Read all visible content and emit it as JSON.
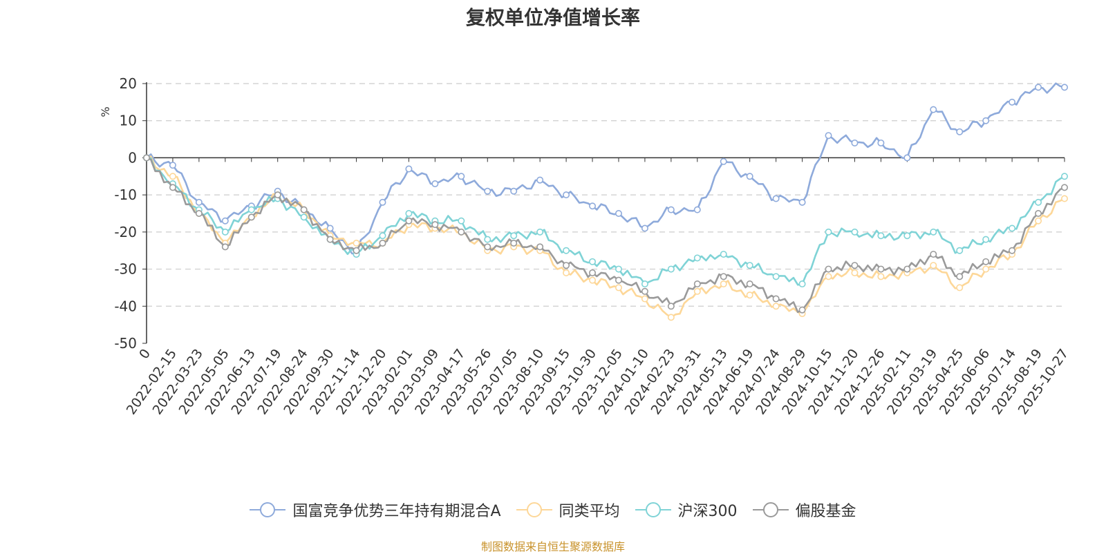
{
  "colors": {
    "series_a": "#8eaadb",
    "peer_avg": "#fdd798",
    "csi300": "#7fd3d6",
    "equity_funds": "#9a9a9a",
    "source": "#c8922b",
    "unit": "#e02020"
  },
  "source_note": "制图数据来自恒生聚源数据库",
  "chart_data": {
    "type": "line",
    "title": "复权单位净值增长率",
    "ylabel": "%",
    "xlabel": "",
    "ylim": [
      -50,
      20
    ],
    "yticks": [
      20,
      10,
      0,
      -10,
      -20,
      -30,
      -40,
      -50
    ],
    "grid": true,
    "legend_position": "bottom-center",
    "categories": [
      "0",
      "2022-02-15",
      "2022-03-23",
      "2022-05-05",
      "2022-06-13",
      "2022-07-19",
      "2022-08-24",
      "2022-09-30",
      "2022-11-14",
      "2022-12-20",
      "2023-02-01",
      "2023-03-09",
      "2023-04-17",
      "2023-05-26",
      "2023-07-05",
      "2023-08-10",
      "2023-09-15",
      "2023-10-30",
      "2023-12-05",
      "2024-01-10",
      "2024-02-23",
      "2024-03-31",
      "2024-05-13",
      "2024-06-19",
      "2024-07-24",
      "2024-08-29",
      "2024-10-15",
      "2024-11-20",
      "2024-12-26",
      "2025-02-11",
      "2025-03-19",
      "2025-04-25",
      "2025-06-06",
      "2025-07-14",
      "2025-08-19",
      "2025-10-27"
    ],
    "series": [
      {
        "name": "国富竞争优势三年持有期混合A",
        "color_key": "series_a",
        "values": [
          0,
          -2,
          -12,
          -17,
          -13,
          -9,
          -14,
          -19,
          -26,
          -12,
          -3,
          -7,
          -5,
          -9,
          -9,
          -6,
          -10,
          -13,
          -15,
          -19,
          -14,
          -14,
          -1,
          -5,
          -11,
          -12,
          6,
          4,
          4,
          0,
          13,
          7,
          10,
          15,
          19,
          19
        ]
      },
      {
        "name": "同类平均",
        "color_key": "peer_avg",
        "values": [
          0,
          -5,
          -15,
          -23,
          -16,
          -10,
          -14,
          -21,
          -23,
          -23,
          -18,
          -19,
          -20,
          -25,
          -24,
          -25,
          -31,
          -33,
          -35,
          -38,
          -43,
          -36,
          -34,
          -37,
          -40,
          -42,
          -32,
          -31,
          -32,
          -31,
          -29,
          -35,
          -30,
          -26,
          -17,
          -11
        ]
      },
      {
        "name": "沪深300",
        "color_key": "csi300",
        "values": [
          0,
          -7,
          -14,
          -20,
          -14,
          -11,
          -16,
          -22,
          -26,
          -21,
          -15,
          -17,
          -17,
          -22,
          -21,
          -20,
          -25,
          -28,
          -30,
          -34,
          -30,
          -27,
          -26,
          -29,
          -32,
          -34,
          -20,
          -20,
          -21,
          -21,
          -20,
          -25,
          -22,
          -19,
          -12,
          -5
        ]
      },
      {
        "name": "偏股基金",
        "color_key": "equity_funds",
        "values": [
          0,
          -8,
          -15,
          -24,
          -16,
          -10,
          -14,
          -22,
          -25,
          -23,
          -17,
          -18,
          -20,
          -24,
          -23,
          -24,
          -29,
          -31,
          -33,
          -36,
          -40,
          -34,
          -32,
          -34,
          -38,
          -41,
          -30,
          -29,
          -30,
          -30,
          -26,
          -32,
          -28,
          -25,
          -15,
          -8
        ]
      }
    ]
  }
}
